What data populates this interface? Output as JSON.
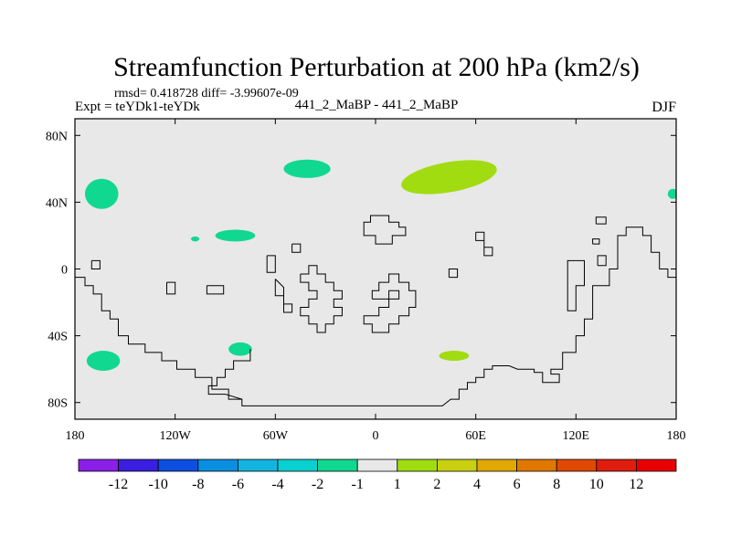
{
  "chart_data": {
    "type": "contour-map",
    "title": "Streamfunction Perturbation at 200 hPa (km2/s)",
    "stats": "rmsd= 0.418728 diff= -3.99607e-09",
    "left_label": "Expt = teYDk1-teYDk",
    "center_label": "441_2_MaBP - 441_2_MaBP",
    "right_label": "DJF",
    "xlim": [
      -180,
      180
    ],
    "ylim": [
      -90,
      90
    ],
    "x_ticks": [
      {
        "value": -180,
        "label": "180"
      },
      {
        "value": -120,
        "label": "120W"
      },
      {
        "value": -60,
        "label": "60W"
      },
      {
        "value": 0,
        "label": "0"
      },
      {
        "value": 60,
        "label": "60E"
      },
      {
        "value": 120,
        "label": "120E"
      },
      {
        "value": 180,
        "label": "180"
      }
    ],
    "y_ticks": [
      {
        "value": 80,
        "label": "80N"
      },
      {
        "value": 40,
        "label": "40N"
      },
      {
        "value": 0,
        "label": "0"
      },
      {
        "value": -40,
        "label": "40S"
      },
      {
        "value": -80,
        "label": "80S"
      }
    ],
    "background_color": "#e8e8e8",
    "colorbar": {
      "labels": [
        "-12",
        "-10",
        "-8",
        "-6",
        "-4",
        "-2",
        "-1",
        "1",
        "2",
        "4",
        "6",
        "8",
        "10",
        "12"
      ],
      "colors": [
        "#8a1fe8",
        "#3a1fe0",
        "#0d4fe0",
        "#0a8ee0",
        "#14b4e0",
        "#0ad0d0",
        "#10d890",
        "#e8e8e8",
        "#a0dc10",
        "#c8d010",
        "#e0a800",
        "#e07800",
        "#e04a00",
        "#e01e10",
        "#e80000"
      ]
    },
    "anomalies": [
      {
        "lon": -164,
        "lat": 45,
        "rlon": 10,
        "rlat": 9,
        "bin": "-2 to -1",
        "color": "#10d890"
      },
      {
        "lon": -108,
        "lat": 18,
        "rlon": 2.5,
        "rlat": 1.5,
        "bin": "-2 to -1",
        "color": "#10d890"
      },
      {
        "lon": -84,
        "lat": 20,
        "rlon": 12,
        "rlat": 3.5,
        "bin": "-2 to -1",
        "color": "#10d890"
      },
      {
        "lon": -41,
        "lat": 60,
        "rlon": 14,
        "rlat": 5.5,
        "bin": "-2 to -1",
        "color": "#10d890"
      },
      {
        "lon": 178,
        "lat": 45,
        "rlon": 3,
        "rlat": 3,
        "bin": "-2 to -1",
        "color": "#10d890"
      },
      {
        "lon": -163,
        "lat": -55,
        "rlon": 10,
        "rlat": 6,
        "bin": "-2 to -1",
        "color": "#10d890"
      },
      {
        "lon": -81,
        "lat": -48,
        "rlon": 7,
        "rlat": 4,
        "bin": "-2 to -1",
        "color": "#10d890"
      },
      {
        "lon": 44,
        "lat": 55,
        "rlon": 29,
        "rlat": 9,
        "bin": "1 to 2",
        "color": "#a0dc10"
      },
      {
        "lon": 47,
        "lat": -52,
        "rlon": 9,
        "rlat": 3,
        "bin": "1 to 2",
        "color": "#a0dc10"
      }
    ],
    "topography_outlines": [
      {
        "name": "south-america-antarctica",
        "points": [
          [
            -180,
            -5
          ],
          [
            -174,
            -5
          ],
          [
            -174,
            -10
          ],
          [
            -169,
            -10
          ],
          [
            -169,
            -15
          ],
          [
            -164,
            -15
          ],
          [
            -164,
            -25
          ],
          [
            -159,
            -25
          ],
          [
            -159,
            -30
          ],
          [
            -154,
            -30
          ],
          [
            -154,
            -40
          ],
          [
            -148,
            -40
          ],
          [
            -148,
            -45
          ],
          [
            -138,
            -45
          ],
          [
            -138,
            -50
          ],
          [
            -128,
            -50
          ],
          [
            -128,
            -55
          ],
          [
            -119,
            -55
          ],
          [
            -119,
            -60
          ],
          [
            -108,
            -60
          ],
          [
            -108,
            -65
          ],
          [
            -98,
            -65
          ],
          [
            -98,
            -72
          ],
          [
            -88,
            -72
          ],
          [
            -88,
            -78
          ],
          [
            -80,
            -78
          ],
          [
            -80,
            -82
          ],
          [
            -40,
            -82
          ],
          [
            0,
            -82
          ],
          [
            40,
            -82
          ],
          [
            45,
            -78
          ],
          [
            50,
            -78
          ],
          [
            50,
            -72
          ],
          [
            55,
            -72
          ],
          [
            55,
            -68
          ],
          [
            60,
            -68
          ],
          [
            60,
            -65
          ],
          [
            65,
            -65
          ],
          [
            65,
            -60
          ],
          [
            70,
            -60
          ],
          [
            70,
            -58
          ],
          [
            80,
            -58
          ],
          [
            85,
            -60
          ],
          [
            95,
            -60
          ],
          [
            95,
            -62
          ],
          [
            100,
            -62
          ],
          [
            100,
            -68
          ],
          [
            110,
            -68
          ],
          [
            110,
            -63
          ],
          [
            105,
            -63
          ],
          [
            105,
            -60
          ],
          [
            112,
            -60
          ],
          [
            112,
            -50
          ],
          [
            120,
            -50
          ],
          [
            120,
            -40
          ],
          [
            125,
            -40
          ],
          [
            125,
            -30
          ],
          [
            130,
            -30
          ],
          [
            130,
            -10
          ],
          [
            140,
            -10
          ],
          [
            140,
            0
          ],
          [
            145,
            0
          ],
          [
            145,
            20
          ],
          [
            150,
            20
          ],
          [
            150,
            25
          ],
          [
            160,
            25
          ],
          [
            160,
            20
          ],
          [
            165,
            20
          ],
          [
            165,
            10
          ],
          [
            170,
            10
          ],
          [
            170,
            0
          ],
          [
            175,
            0
          ],
          [
            175,
            -5
          ],
          [
            180,
            -5
          ]
        ]
      },
      {
        "name": "central-america",
        "points": [
          [
            -75,
            -48
          ],
          [
            -75,
            -55
          ],
          [
            -85,
            -55
          ],
          [
            -85,
            -60
          ],
          [
            -90,
            -60
          ],
          [
            -90,
            -65
          ],
          [
            -95,
            -65
          ],
          [
            -95,
            -70
          ],
          [
            -100,
            -70
          ],
          [
            -100,
            -75
          ],
          [
            -90,
            -75
          ],
          [
            -80,
            -78
          ]
        ]
      },
      {
        "name": "north-africa",
        "points": [
          [
            -7,
            25
          ],
          [
            -7,
            28
          ],
          [
            -3,
            28
          ],
          [
            -3,
            32
          ],
          [
            8,
            32
          ],
          [
            8,
            28
          ],
          [
            14,
            28
          ],
          [
            14,
            25
          ],
          [
            18,
            25
          ],
          [
            18,
            20
          ],
          [
            10,
            20
          ],
          [
            10,
            15
          ],
          [
            0,
            15
          ],
          [
            0,
            20
          ],
          [
            -7,
            20
          ],
          [
            -7,
            25
          ]
        ]
      },
      {
        "name": "west-africa",
        "points": [
          [
            -45,
            -3
          ],
          [
            -45,
            -8
          ],
          [
            -40,
            -8
          ],
          [
            -40,
            -13
          ],
          [
            -35,
            -13
          ],
          [
            -35,
            -18
          ],
          [
            -40,
            -18
          ],
          [
            -40,
            -23
          ],
          [
            -45,
            -23
          ],
          [
            -45,
            -28
          ],
          [
            -40,
            -28
          ],
          [
            -40,
            -33
          ],
          [
            -35,
            -33
          ],
          [
            -35,
            -38
          ],
          [
            -30,
            -38
          ],
          [
            -30,
            -33
          ],
          [
            -25,
            -33
          ],
          [
            -25,
            -28
          ],
          [
            -20,
            -28
          ],
          [
            -20,
            -23
          ],
          [
            -25,
            -23
          ],
          [
            -25,
            -18
          ],
          [
            -20,
            -18
          ],
          [
            -20,
            -13
          ],
          [
            -25,
            -13
          ],
          [
            -25,
            -8
          ],
          [
            -30,
            -8
          ],
          [
            -30,
            -3
          ],
          [
            -35,
            -3
          ],
          [
            -35,
            2
          ],
          [
            -40,
            2
          ],
          [
            -40,
            -3
          ],
          [
            -45,
            -3
          ]
        ]
      },
      {
        "name": "east-africa",
        "points": [
          [
            -2,
            -18
          ],
          [
            -2,
            -13
          ],
          [
            2,
            -13
          ],
          [
            2,
            -8
          ],
          [
            8,
            -8
          ],
          [
            8,
            -3
          ],
          [
            14,
            -3
          ],
          [
            14,
            -8
          ],
          [
            20,
            -8
          ],
          [
            20,
            -13
          ],
          [
            24,
            -13
          ],
          [
            24,
            -23
          ],
          [
            20,
            -23
          ],
          [
            20,
            -28
          ],
          [
            14,
            -28
          ],
          [
            14,
            -33
          ],
          [
            8,
            -33
          ],
          [
            8,
            -38
          ],
          [
            -2,
            -38
          ],
          [
            -2,
            -33
          ],
          [
            -7,
            -33
          ],
          [
            -7,
            -28
          ],
          [
            2,
            -28
          ],
          [
            2,
            -23
          ],
          [
            8,
            -23
          ],
          [
            8,
            -18
          ],
          [
            14,
            -18
          ],
          [
            14,
            -13
          ],
          [
            8,
            -13
          ],
          [
            8,
            -18
          ],
          [
            -2,
            -18
          ]
        ]
      },
      {
        "name": "south-atlantic-island",
        "points": [
          [
            -60,
            -6
          ],
          [
            -60,
            -16
          ],
          [
            -55,
            -16
          ],
          [
            -55,
            -21
          ],
          [
            -50,
            -21
          ],
          [
            -50,
            -26
          ],
          [
            -55,
            -26
          ],
          [
            -55,
            -11
          ],
          [
            -60,
            -6
          ]
        ]
      },
      {
        "name": "atlantic-island-a",
        "points": [
          [
            -50,
            15
          ],
          [
            -50,
            10
          ],
          [
            -45,
            10
          ],
          [
            -45,
            15
          ],
          [
            -50,
            15
          ]
        ]
      },
      {
        "name": "atlantic-island-b",
        "points": [
          [
            -65,
            8
          ],
          [
            -65,
            -2
          ],
          [
            -60,
            -2
          ],
          [
            -60,
            8
          ],
          [
            -65,
            8
          ]
        ]
      },
      {
        "name": "indian-ocean-island",
        "points": [
          [
            60,
            22
          ],
          [
            60,
            17
          ],
          [
            65,
            17
          ],
          [
            65,
            8
          ],
          [
            70,
            8
          ],
          [
            70,
            13
          ],
          [
            65,
            13
          ],
          [
            65,
            22
          ],
          [
            60,
            22
          ]
        ]
      },
      {
        "name": "madagascar-region",
        "points": [
          [
            44,
            -5
          ],
          [
            44,
            0
          ],
          [
            49,
            0
          ],
          [
            49,
            -5
          ],
          [
            44,
            -5
          ]
        ]
      },
      {
        "name": "maritime-continent",
        "points": [
          [
            120,
            -20
          ],
          [
            120,
            -10
          ],
          [
            125,
            -10
          ],
          [
            125,
            5
          ],
          [
            115,
            5
          ],
          [
            115,
            -25
          ],
          [
            120,
            -25
          ],
          [
            120,
            -20
          ]
        ]
      },
      {
        "name": "pacific-island-a",
        "points": [
          [
            130,
            15
          ],
          [
            130,
            18
          ],
          [
            134,
            18
          ],
          [
            134,
            15
          ],
          [
            130,
            15
          ]
        ]
      },
      {
        "name": "pacific-island-b",
        "points": [
          [
            133,
            2
          ],
          [
            133,
            8
          ],
          [
            138,
            8
          ],
          [
            138,
            2
          ],
          [
            133,
            2
          ]
        ]
      },
      {
        "name": "pacific-island-c",
        "points": [
          [
            132,
            27
          ],
          [
            132,
            31
          ],
          [
            138,
            31
          ],
          [
            138,
            27
          ],
          [
            132,
            27
          ]
        ]
      },
      {
        "name": "north-atlantic-island",
        "points": [
          [
            -101,
            -10
          ],
          [
            -101,
            -15
          ],
          [
            -91,
            -15
          ],
          [
            -91,
            -10
          ],
          [
            -101,
            -10
          ]
        ]
      },
      {
        "name": "south-atlantic-small",
        "points": [
          [
            -125,
            -8
          ],
          [
            -125,
            -15
          ],
          [
            -120,
            -15
          ],
          [
            -120,
            -8
          ],
          [
            -125,
            -8
          ]
        ]
      },
      {
        "name": "north-pacific-small",
        "points": [
          [
            -170,
            5
          ],
          [
            -170,
            0
          ],
          [
            -165,
            0
          ],
          [
            -165,
            5
          ],
          [
            -170,
            5
          ]
        ]
      }
    ]
  }
}
